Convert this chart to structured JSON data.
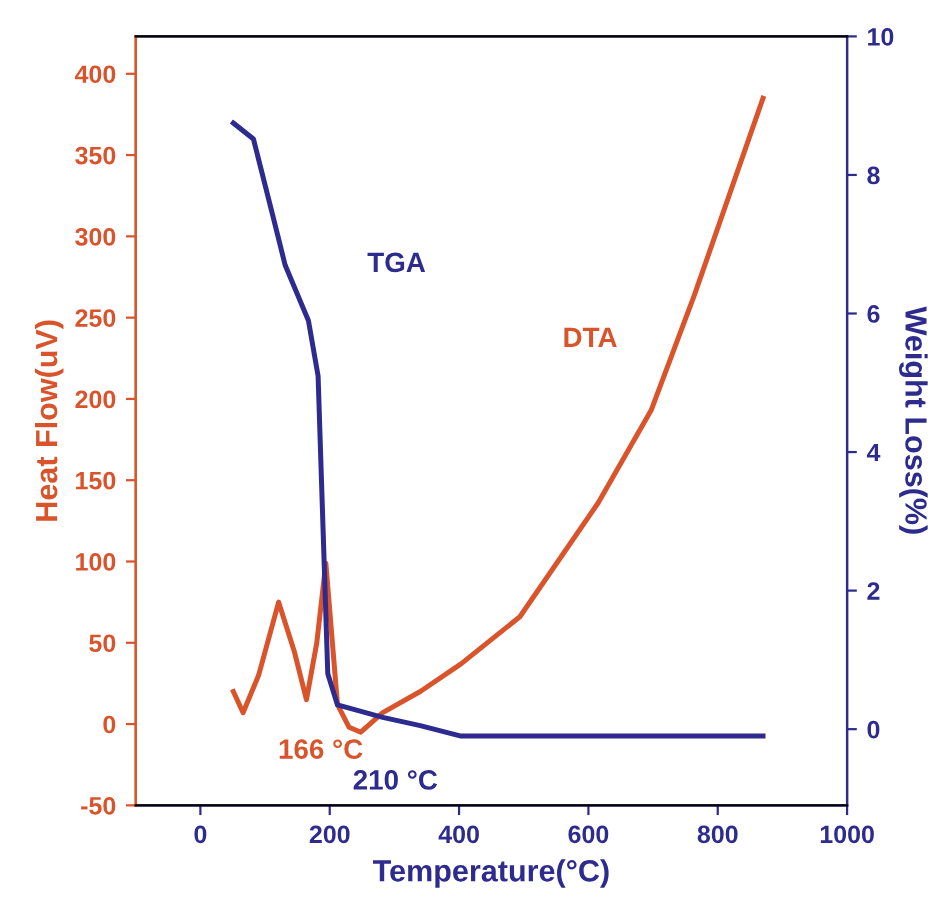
{
  "chart_data": {
    "type": "line",
    "xlabel": "Temperature(°C)",
    "ylabel": "Heat Flow(uV)",
    "y2label": "Weight Loss(%)",
    "xlim": [
      -100,
      1000
    ],
    "xticks": [
      0,
      200,
      400,
      600,
      800,
      1000
    ],
    "ylim": [
      -50,
      423
    ],
    "yticks": [
      -50,
      0,
      50,
      100,
      150,
      200,
      250,
      300,
      350,
      400
    ],
    "y2lim": [
      -1.1,
      10
    ],
    "y2ticks": [
      0,
      2,
      4,
      6,
      8,
      10
    ],
    "grid": false,
    "legend": false,
    "marker": "none",
    "line_style": "solid",
    "series": [
      {
        "name": "DTA",
        "color": "#d9532b",
        "x": [
          51,
          66,
          90,
          121,
          145,
          164,
          180,
          194,
          212,
          230,
          248,
          282,
          340,
          403,
          494,
          615,
          697,
          764,
          870
        ],
        "values": [
          20,
          7,
          30,
          75,
          45,
          15,
          50,
          99,
          12,
          -2,
          -5,
          7,
          20,
          37,
          66,
          136,
          193,
          264,
          385
        ]
      },
      {
        "name": "TGA",
        "color": "#2e2b8f",
        "axis": "y2",
        "x": [
          51,
          82,
          111,
          131,
          167,
          182,
          190,
          197,
          212,
          282,
          340,
          403,
          600,
          870
        ],
        "values": [
          8.75,
          8.52,
          7.45,
          6.7,
          5.9,
          5.1,
          2.8,
          0.8,
          0.35,
          0.17,
          0.05,
          -0.1,
          -0.1,
          -0.1
        ]
      }
    ],
    "annotations": [
      "166 °C",
      "210 °C"
    ]
  }
}
